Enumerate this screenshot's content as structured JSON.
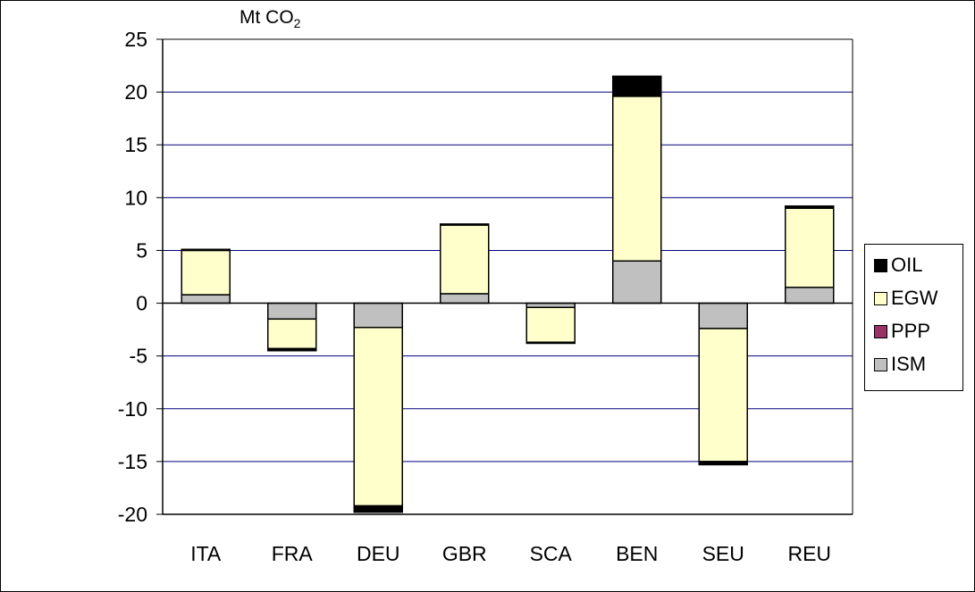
{
  "chart_data": {
    "type": "bar",
    "stacked": true,
    "unit": "Mt CO",
    "unit_subscript": "2",
    "categories": [
      "ITA",
      "FRA",
      "DEU",
      "GBR",
      "SCA",
      "BEN",
      "SEU",
      "REU"
    ],
    "ylim": [
      -20,
      25
    ],
    "yticks": [
      25,
      20,
      15,
      10,
      5,
      0,
      -5,
      -10,
      -15,
      -20
    ],
    "grid": true,
    "legend_position": "right",
    "series": [
      {
        "name": "ISM",
        "color": "#c0c0c0",
        "values": [
          0.8,
          -1.5,
          -2.3,
          0.9,
          -0.4,
          4.0,
          -2.4,
          1.5
        ]
      },
      {
        "name": "PPP",
        "color": "#993366",
        "values": [
          0,
          0,
          0,
          0,
          0,
          0,
          0,
          0
        ]
      },
      {
        "name": "EGW",
        "color": "#ffffcc",
        "values": [
          4.2,
          -2.8,
          -16.9,
          6.5,
          -3.3,
          15.6,
          -12.6,
          7.5
        ]
      },
      {
        "name": "OIL",
        "color": "#000000",
        "values": [
          0.1,
          -0.2,
          -0.6,
          0.1,
          -0.1,
          1.9,
          -0.3,
          0.2
        ]
      }
    ]
  }
}
